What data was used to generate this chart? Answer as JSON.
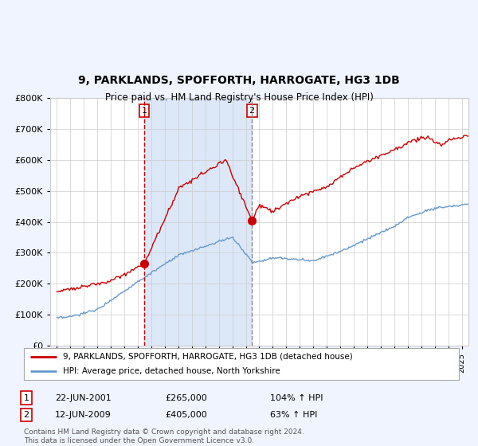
{
  "title": "9, PARKLANDS, SPOFFORTH, HARROGATE, HG3 1DB",
  "subtitle": "Price paid vs. HM Land Registry's House Price Index (HPI)",
  "legend_line1": "9, PARKLANDS, SPOFFORTH, HARROGATE, HG3 1DB (detached house)",
  "legend_line2": "HPI: Average price, detached house, North Yorkshire",
  "sale1_date": "22-JUN-2001",
  "sale1_price": "£265,000",
  "sale1_hpi": "104% ↑ HPI",
  "sale2_date": "12-JUN-2009",
  "sale2_price": "£405,000",
  "sale2_hpi": "63% ↑ HPI",
  "footer": "Contains HM Land Registry data © Crown copyright and database right 2024.\nThis data is licensed under the Open Government Licence v3.0.",
  "red_line_color": "#cc0000",
  "blue_line_color": "#6699cc",
  "bg_color": "#f0f4ff",
  "plot_bg": "#ffffff",
  "shade_color": "#dce8f8",
  "vline1_x": 2001.47,
  "vline2_x": 2009.45,
  "sale1_x": 2001.47,
  "sale1_y": 265000,
  "sale2_x": 2009.45,
  "sale2_y": 405000,
  "ylim": [
    0,
    800000
  ],
  "xlim_start": 1994.5,
  "xlim_end": 2025.5
}
